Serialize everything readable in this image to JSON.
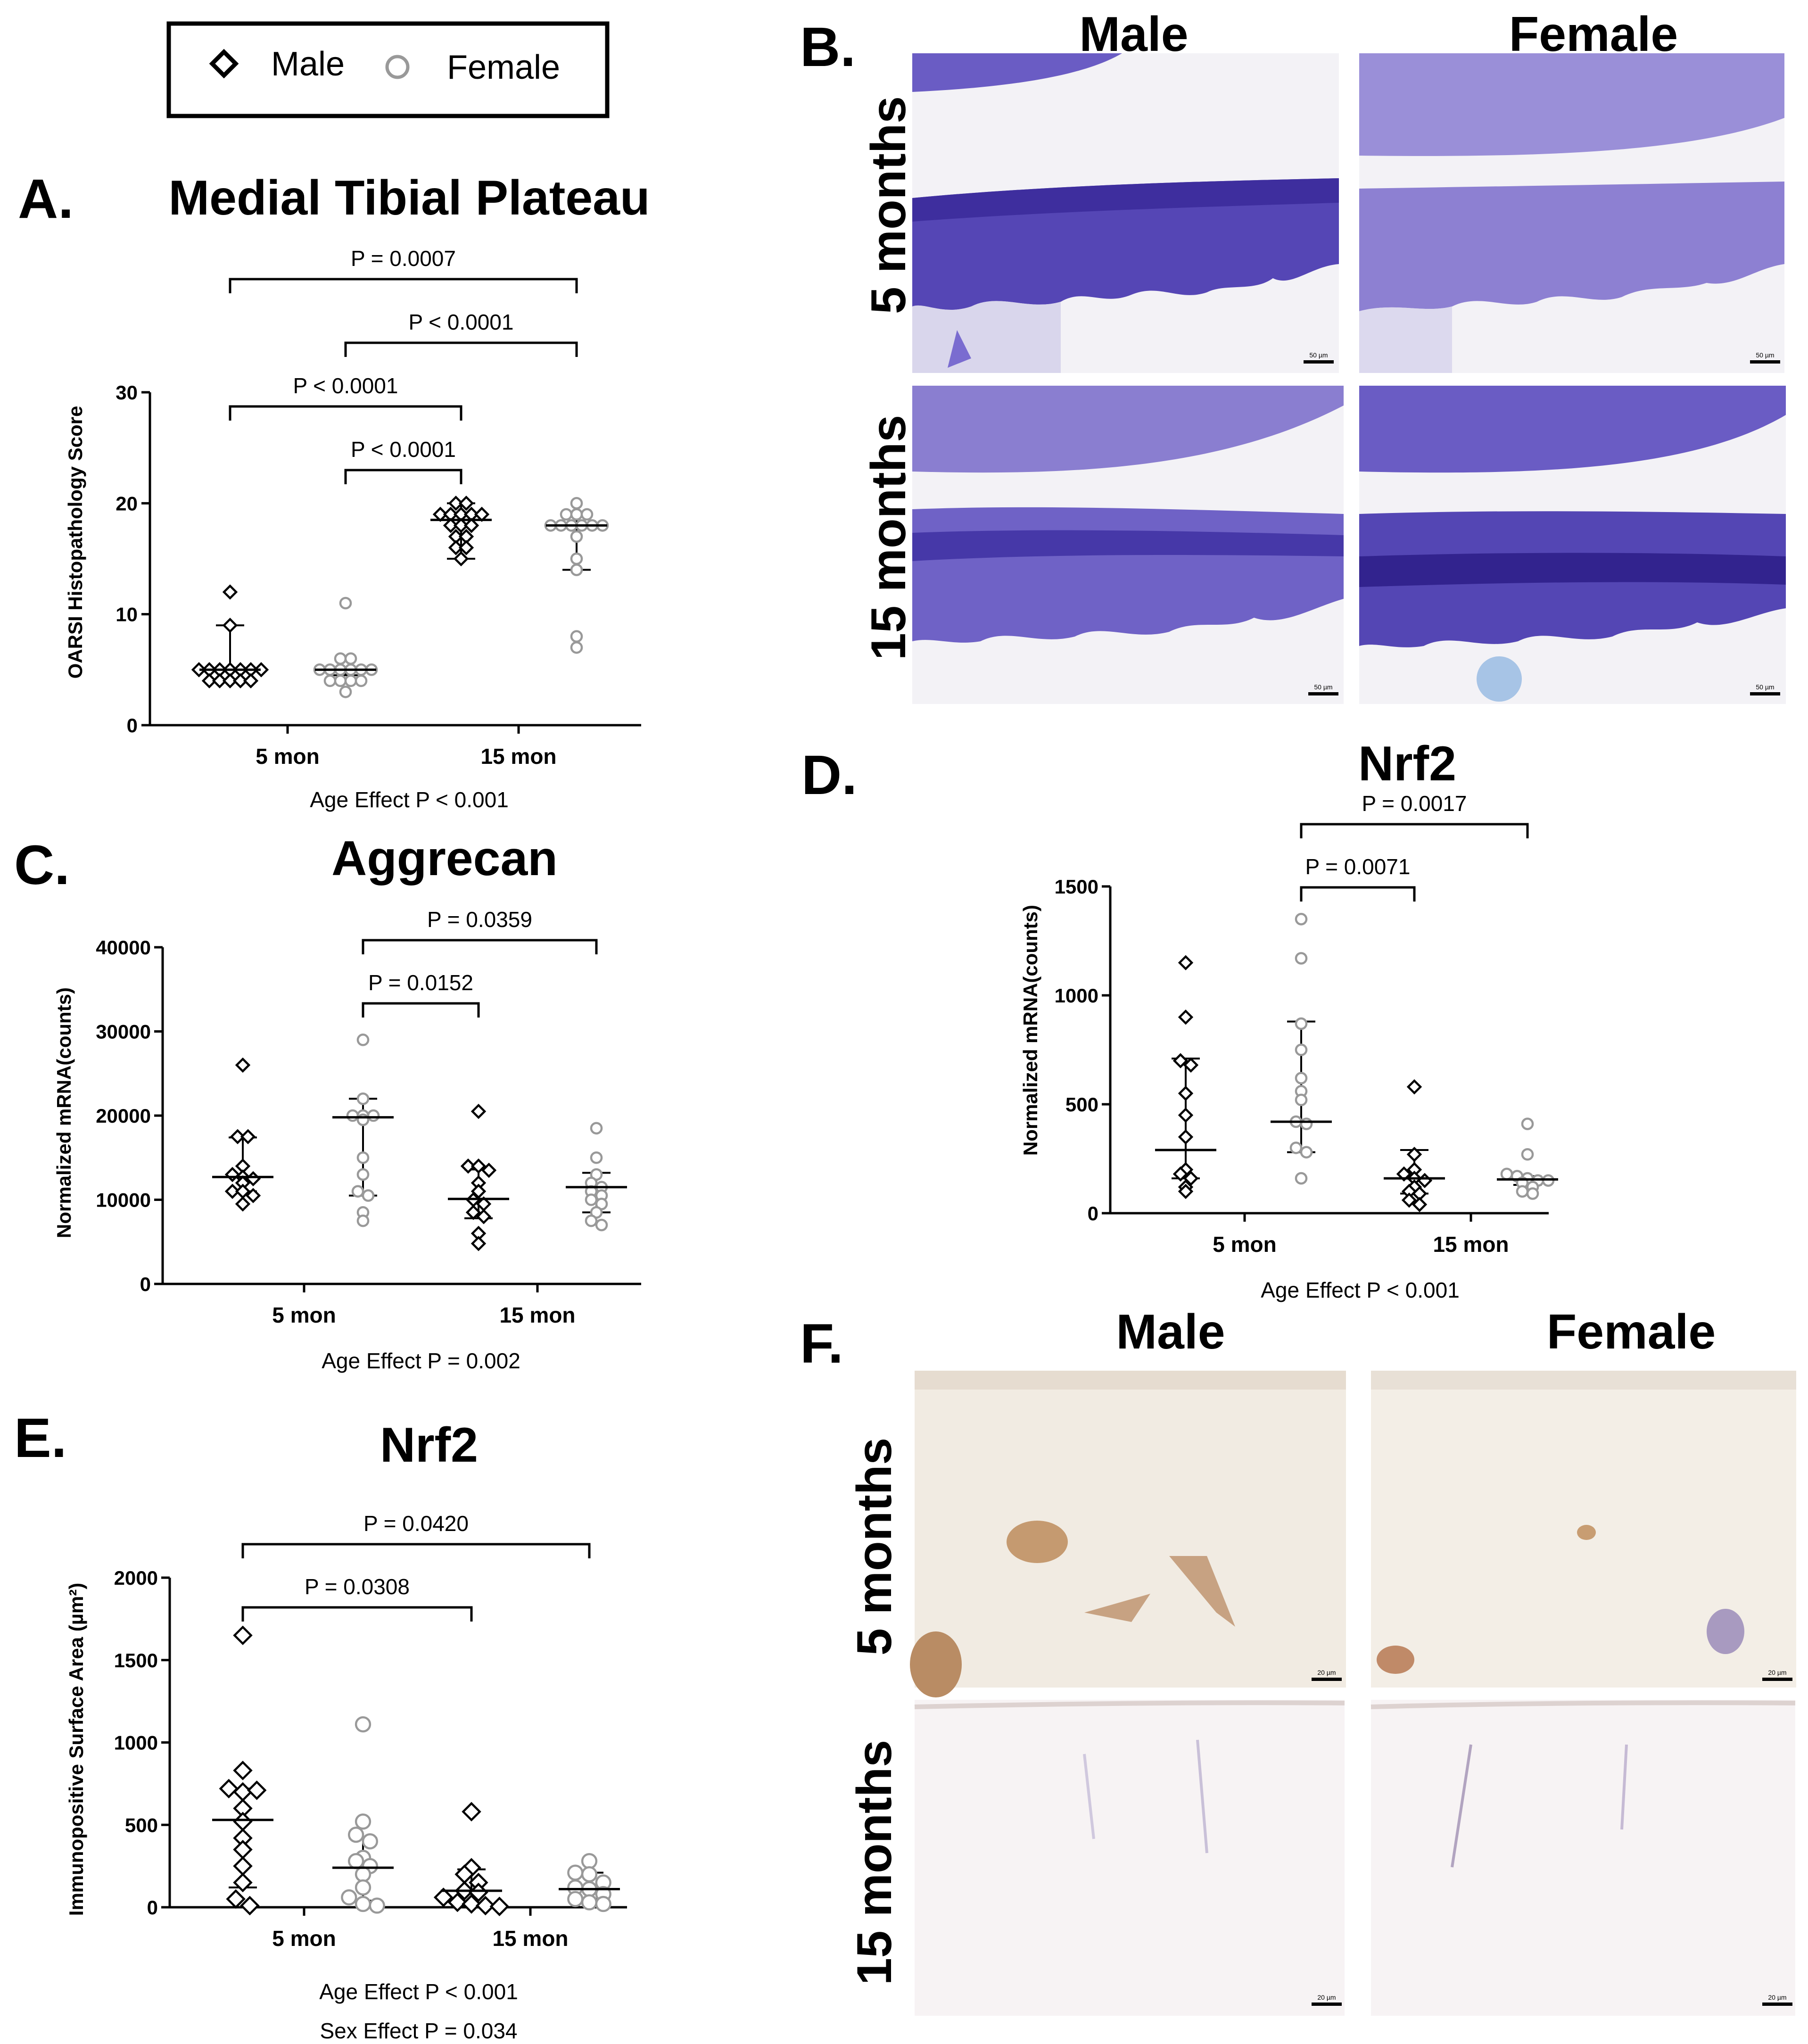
{
  "legend": {
    "male_label": "Male",
    "female_label": "Female",
    "male_symbol": "diamond",
    "female_symbol": "circle"
  },
  "colors": {
    "male": "#000000",
    "female": "#999999",
    "toluidine_dark": "#4a3aa8",
    "toluidine_light": "#b3aee0",
    "ihc_brown": "#8a5a3a"
  },
  "charts": {
    "A": {
      "letter": "A.",
      "title": "Medial Tibial Plateau",
      "ylabel": "OARSI Histopathology Score",
      "effect": [
        "Age Effect  P < 0.001"
      ]
    },
    "C": {
      "letter": "C.",
      "title": "Aggrecan",
      "ylabel": "Normalized mRNA(counts)",
      "effect": [
        "Age Effect P = 0.002"
      ]
    },
    "D": {
      "letter": "D.",
      "title": "Nrf2",
      "ylabel": "Normalized mRNA(counts)",
      "effect": [
        "Age Effect P < 0.001"
      ]
    },
    "E": {
      "letter": "E.",
      "title": "Nrf2",
      "ylabel": "Immunopositive Surface Area (µm²)",
      "effect": [
        "Age Effect  P < 0.001",
        "Sex Effect  P = 0.034"
      ]
    }
  },
  "images": {
    "B": {
      "letter": "B.",
      "col_male": "Male",
      "col_female": "Female",
      "row_5": "5 months",
      "row_15": "15 months",
      "scale": "50 µm",
      "stain": "toluidine blue"
    },
    "F": {
      "letter": "F.",
      "col_male": "Male",
      "col_female": "Female",
      "row_5": "5 months",
      "row_15": "15 months",
      "scale": "20 µm",
      "stain": "Nrf2 immunohistochemistry"
    }
  },
  "chart_data": [
    {
      "id": "A",
      "type": "scatter",
      "title": "Medial Tibial Plateau",
      "xlabel": "",
      "ylabel": "OARSI Histopathology Score",
      "categories": [
        "5 mon",
        "15 mon"
      ],
      "ylim": [
        0,
        30
      ],
      "yticks": [
        0,
        10,
        20,
        30
      ],
      "groups": [
        {
          "category": "5 mon",
          "sex": "Male",
          "points": [
            5,
            5,
            5,
            5,
            5,
            5,
            5,
            4,
            4,
            4,
            4,
            4,
            9,
            12
          ],
          "median": 5,
          "q1": 5,
          "q3": 9
        },
        {
          "category": "5 mon",
          "sex": "Female",
          "points": [
            5,
            5,
            5,
            5,
            5,
            5,
            4,
            4,
            4,
            4,
            6,
            6,
            3,
            11
          ],
          "median": 5,
          "q1": 4.5,
          "q3": 5
        },
        {
          "category": "15 mon",
          "sex": "Male",
          "points": [
            19,
            19,
            19,
            19,
            19,
            18,
            18,
            18,
            17,
            17,
            16,
            16,
            15,
            20,
            20
          ],
          "median": 18.5,
          "q1": 15,
          "q3": 20
        },
        {
          "category": "15 mon",
          "sex": "Female",
          "points": [
            19,
            19,
            19,
            18,
            18,
            18,
            18,
            18,
            18,
            17,
            15,
            14,
            8,
            7,
            20
          ],
          "median": 18,
          "q1": 14,
          "q3": 19
        }
      ],
      "comparisons": [
        {
          "label": "P = 0.0007",
          "from": 0,
          "to": 3
        },
        {
          "label": "P < 0.0001",
          "from": 1,
          "to": 3
        },
        {
          "label": "P < 0.0001",
          "from": 0,
          "to": 2
        },
        {
          "label": "P < 0.0001",
          "from": 1,
          "to": 2
        }
      ],
      "annotation": "Age Effect  P < 0.001"
    },
    {
      "id": "C",
      "type": "scatter",
      "title": "Aggrecan",
      "xlabel": "",
      "ylabel": "Normalized mRNA(counts)",
      "categories": [
        "5 mon",
        "15 mon"
      ],
      "ylim": [
        0,
        40000
      ],
      "yticks": [
        0,
        10000,
        20000,
        30000,
        40000
      ],
      "groups": [
        {
          "category": "5 mon",
          "sex": "Male",
          "points": [
            26000,
            17500,
            17500,
            14000,
            13000,
            12700,
            12500,
            12000,
            11000,
            11000,
            10500,
            9500
          ],
          "median": 12700,
          "q1": 11000,
          "q3": 17400
        },
        {
          "category": "5 mon",
          "sex": "Female",
          "points": [
            29000,
            22000,
            20000,
            20000,
            20000,
            19500,
            15000,
            13000,
            11000,
            10500,
            8500,
            7500
          ],
          "median": 19800,
          "q1": 10500,
          "q3": 22000
        },
        {
          "category": "15 mon",
          "sex": "Male",
          "points": [
            20500,
            14000,
            14000,
            13500,
            12000,
            11000,
            10000,
            9500,
            8500,
            8000,
            6000,
            4800
          ],
          "median": 10100,
          "q1": 7800,
          "q3": 13600
        },
        {
          "category": "15 mon",
          "sex": "Female",
          "points": [
            18500,
            15000,
            13000,
            12000,
            11500,
            11000,
            10500,
            10000,
            9500,
            8500,
            7500,
            7000
          ],
          "median": 11500,
          "q1": 8500,
          "q3": 13200
        }
      ],
      "comparisons": [
        {
          "label": "P = 0.0359",
          "from": 1,
          "to": 3
        },
        {
          "label": "P = 0.0152",
          "from": 1,
          "to": 2
        }
      ],
      "annotation": "Age Effect P = 0.002"
    },
    {
      "id": "D",
      "type": "scatter",
      "title": "Nrf2",
      "xlabel": "",
      "ylabel": "Normalized mRNA(counts)",
      "categories": [
        "5 mon",
        "15 mon"
      ],
      "ylim": [
        0,
        1500
      ],
      "yticks": [
        0,
        500,
        1000,
        1500
      ],
      "groups": [
        {
          "category": "5 mon",
          "sex": "Male",
          "points": [
            1150,
            900,
            700,
            680,
            550,
            450,
            350,
            200,
            180,
            160,
            120,
            100
          ],
          "median": 290,
          "q1": 160,
          "q3": 710
        },
        {
          "category": "5 mon",
          "sex": "Female",
          "points": [
            1350,
            1170,
            870,
            750,
            620,
            520,
            420,
            410,
            300,
            280,
            160,
            560
          ],
          "median": 420,
          "q1": 280,
          "q3": 880
        },
        {
          "category": "15 mon",
          "sex": "Male",
          "points": [
            580,
            270,
            200,
            180,
            160,
            150,
            120,
            100,
            90,
            60,
            40
          ],
          "median": 160,
          "q1": 90,
          "q3": 290
        },
        {
          "category": "15 mon",
          "sex": "Female",
          "points": [
            410,
            270,
            180,
            170,
            160,
            150,
            150,
            140,
            120,
            100,
            90
          ],
          "median": 155,
          "q1": 130,
          "q3": 170
        }
      ],
      "comparisons": [
        {
          "label": "P = 0.0017",
          "from": 1,
          "to": 3
        },
        {
          "label": "P = 0.0071",
          "from": 1,
          "to": 2
        }
      ],
      "annotation": "Age Effect P < 0.001"
    },
    {
      "id": "E",
      "type": "scatter",
      "title": "Nrf2",
      "xlabel": "",
      "ylabel": "Immunopositive Surface Area (µm²)",
      "categories": [
        "5 mon",
        "15 mon"
      ],
      "ylim": [
        0,
        2000
      ],
      "yticks": [
        0,
        500,
        1000,
        1500,
        2000
      ],
      "groups": [
        {
          "category": "5 mon",
          "sex": "Male",
          "points": [
            1650,
            830,
            720,
            700,
            710,
            600,
            520,
            420,
            350,
            250,
            150,
            50,
            10
          ],
          "median": 530,
          "q1": 120,
          "q3": 720
        },
        {
          "category": "5 mon",
          "sex": "Female",
          "points": [
            1110,
            520,
            440,
            400,
            300,
            280,
            250,
            200,
            120,
            60,
            20,
            10
          ],
          "median": 240,
          "q1": 40,
          "q3": 420
        },
        {
          "category": "15 mon",
          "sex": "Male",
          "points": [
            580,
            240,
            200,
            150,
            100,
            90,
            60,
            30,
            20,
            10,
            5
          ],
          "median": 100,
          "q1": 20,
          "q3": 230
        },
        {
          "category": "15 mon",
          "sex": "Female",
          "points": [
            280,
            210,
            200,
            150,
            120,
            110,
            80,
            50,
            30,
            20
          ],
          "median": 110,
          "q1": 50,
          "q3": 210
        }
      ],
      "comparisons": [
        {
          "label": "P = 0.0420",
          "from": 0,
          "to": 3
        },
        {
          "label": "P = 0.0308",
          "from": 0,
          "to": 2
        }
      ],
      "annotation": [
        "Age Effect  P < 0.001",
        "Sex Effect  P = 0.034"
      ]
    }
  ]
}
